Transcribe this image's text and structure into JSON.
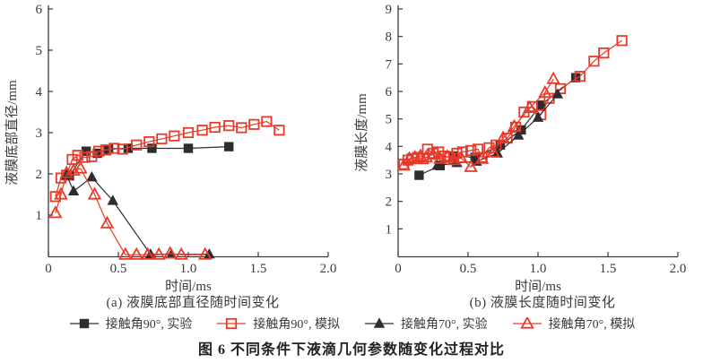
{
  "figure": {
    "caption": "图 6  不同条件下液滴几何参数随变化过程对比",
    "colors": {
      "experiment_black": "#2d2d2d",
      "simulation_red": "#e8392a",
      "axis": "#3a3a3a"
    },
    "legend": [
      {
        "label": "接触角90°, 实验",
        "marker": "square-filled",
        "color": "#2d2d2d"
      },
      {
        "label": "接触角90°, 模拟",
        "marker": "square-open",
        "color": "#e8392a"
      },
      {
        "label": "接触角70°, 实验",
        "marker": "triangle-filled",
        "color": "#2d2d2d"
      },
      {
        "label": "接触角70°, 模拟",
        "marker": "triangle-open",
        "color": "#e8392a"
      }
    ]
  },
  "chart_data": [
    {
      "type": "line",
      "title": "(a) 液膜底部直径随时间变化",
      "xlabel": "时间/ms",
      "ylabel": "液膜底部直径/mm",
      "xlim": [
        0,
        2.0
      ],
      "ylim": [
        0,
        6
      ],
      "xticks": [
        0,
        0.5,
        1.0,
        1.5,
        2.0
      ],
      "xtick_labels": [
        "0",
        "0.5",
        "1.0",
        "1.5",
        "2.0"
      ],
      "yticks": [
        1,
        2,
        3,
        4,
        5,
        6
      ],
      "grid": false,
      "series": [
        {
          "name": "接触角90°, 实验",
          "marker": "square-filled",
          "color": "#2d2d2d",
          "points": [
            [
              0.15,
              1.95
            ],
            [
              0.27,
              2.55
            ],
            [
              0.35,
              2.5
            ],
            [
              0.43,
              2.6
            ],
            [
              0.57,
              2.62
            ],
            [
              0.74,
              2.62
            ],
            [
              1.0,
              2.62
            ],
            [
              1.29,
              2.66
            ]
          ]
        },
        {
          "name": "接触角90°, 模拟",
          "marker": "square-open",
          "color": "#e8392a",
          "points": [
            [
              0.05,
              1.45
            ],
            [
              0.09,
              1.9
            ],
            [
              0.13,
              1.97
            ],
            [
              0.17,
              2.35
            ],
            [
              0.21,
              2.45
            ],
            [
              0.26,
              2.4
            ],
            [
              0.31,
              2.42
            ],
            [
              0.36,
              2.55
            ],
            [
              0.41,
              2.58
            ],
            [
              0.47,
              2.62
            ],
            [
              0.53,
              2.6
            ],
            [
              0.63,
              2.7
            ],
            [
              0.72,
              2.78
            ],
            [
              0.81,
              2.85
            ],
            [
              0.9,
              2.92
            ],
            [
              1.0,
              3.0
            ],
            [
              1.1,
              3.06
            ],
            [
              1.19,
              3.13
            ],
            [
              1.29,
              3.17
            ],
            [
              1.38,
              3.12
            ],
            [
              1.47,
              3.2
            ],
            [
              1.56,
              3.27
            ],
            [
              1.65,
              3.06
            ]
          ]
        },
        {
          "name": "接触角70°, 实验",
          "marker": "triangle-filled",
          "color": "#2d2d2d",
          "points": [
            [
              0.13,
              1.97
            ],
            [
              0.18,
              1.58
            ],
            [
              0.31,
              1.92
            ],
            [
              0.46,
              1.35
            ],
            [
              0.73,
              0.05
            ],
            [
              0.88,
              0.05
            ],
            [
              1.15,
              0.05
            ]
          ]
        },
        {
          "name": "接触角70°, 模拟",
          "marker": "triangle-open",
          "color": "#e8392a",
          "points": [
            [
              0.05,
              1.05
            ],
            [
              0.09,
              1.5
            ],
            [
              0.13,
              2.02
            ],
            [
              0.18,
              2.08
            ],
            [
              0.23,
              2.13
            ],
            [
              0.33,
              1.5
            ],
            [
              0.42,
              0.8
            ],
            [
              0.55,
              0.04
            ],
            [
              0.63,
              0.04
            ],
            [
              0.71,
              0.04
            ],
            [
              0.79,
              0.04
            ],
            [
              0.87,
              0.07
            ],
            [
              0.95,
              0.04
            ],
            [
              1.12,
              0.04
            ]
          ]
        }
      ]
    },
    {
      "type": "line",
      "title": "(b) 液膜长度随时间变化",
      "xlabel": "时间/ms",
      "ylabel": "液膜长度/mm",
      "xlim": [
        0,
        2.0
      ],
      "ylim": [
        0,
        9
      ],
      "xticks": [
        0,
        0.5,
        1.0,
        1.5,
        2.0
      ],
      "xtick_labels": [
        "0",
        "0.5",
        "1.0",
        "1.5",
        "2.0"
      ],
      "yticks": [
        1,
        2,
        3,
        4,
        5,
        6,
        7,
        8,
        9
      ],
      "grid": false,
      "series": [
        {
          "name": "接触角90°, 实验",
          "marker": "square-filled",
          "color": "#2d2d2d",
          "points": [
            [
              0.15,
              2.95
            ],
            [
              0.3,
              3.3
            ],
            [
              0.4,
              3.65
            ],
            [
              0.55,
              3.6
            ],
            [
              0.73,
              4.05
            ],
            [
              0.88,
              4.6
            ],
            [
              1.02,
              5.5
            ],
            [
              1.27,
              6.5
            ]
          ]
        },
        {
          "name": "接触角90°, 模拟",
          "marker": "square-open",
          "color": "#e8392a",
          "points": [
            [
              0.04,
              3.35
            ],
            [
              0.07,
              3.5
            ],
            [
              0.1,
              3.55
            ],
            [
              0.14,
              3.6
            ],
            [
              0.18,
              3.55
            ],
            [
              0.21,
              3.9
            ],
            [
              0.25,
              3.75
            ],
            [
              0.29,
              3.8
            ],
            [
              0.33,
              3.65
            ],
            [
              0.37,
              3.6
            ],
            [
              0.42,
              3.75
            ],
            [
              0.46,
              3.8
            ],
            [
              0.52,
              3.85
            ],
            [
              0.57,
              3.9
            ],
            [
              0.6,
              3.6
            ],
            [
              0.65,
              3.95
            ],
            [
              0.7,
              4.05
            ],
            [
              0.78,
              4.3
            ],
            [
              0.84,
              4.7
            ],
            [
              0.9,
              5.25
            ],
            [
              0.96,
              5.45
            ],
            [
              1.02,
              5.15
            ],
            [
              1.08,
              5.75
            ],
            [
              1.16,
              6.1
            ],
            [
              1.3,
              6.55
            ],
            [
              1.4,
              7.1
            ],
            [
              1.47,
              7.4
            ],
            [
              1.6,
              7.85
            ]
          ]
        },
        {
          "name": "接触角70°, 实验",
          "marker": "triangle-filled",
          "color": "#2d2d2d",
          "points": [
            [
              0.28,
              3.3
            ],
            [
              0.42,
              3.4
            ],
            [
              0.56,
              3.45
            ],
            [
              0.71,
              3.75
            ],
            [
              0.86,
              4.4
            ],
            [
              1.0,
              5.05
            ],
            [
              1.14,
              5.9
            ]
          ]
        },
        {
          "name": "接触角70°, 模拟",
          "marker": "triangle-open",
          "color": "#e8392a",
          "points": [
            [
              0.04,
              3.3
            ],
            [
              0.08,
              3.55
            ],
            [
              0.12,
              3.6
            ],
            [
              0.16,
              3.65
            ],
            [
              0.2,
              3.6
            ],
            [
              0.25,
              3.7
            ],
            [
              0.3,
              3.55
            ],
            [
              0.35,
              3.62
            ],
            [
              0.4,
              3.5
            ],
            [
              0.45,
              3.58
            ],
            [
              0.52,
              3.25
            ],
            [
              0.6,
              3.55
            ],
            [
              0.68,
              3.78
            ],
            [
              0.75,
              4.3
            ],
            [
              0.83,
              4.72
            ],
            [
              0.94,
              5.4
            ],
            [
              1.05,
              5.95
            ],
            [
              1.11,
              6.45
            ]
          ]
        }
      ]
    }
  ]
}
